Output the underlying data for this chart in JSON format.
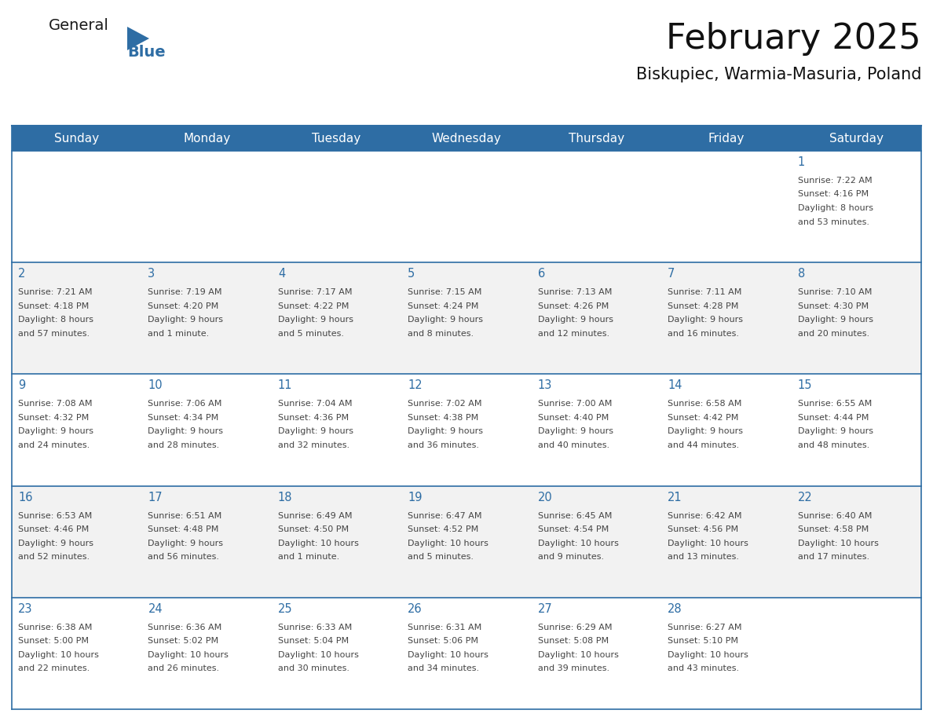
{
  "title": "February 2025",
  "subtitle": "Biskupiec, Warmia-Masuria, Poland",
  "days_of_week": [
    "Sunday",
    "Monday",
    "Tuesday",
    "Wednesday",
    "Thursday",
    "Friday",
    "Saturday"
  ],
  "header_bg": "#2E6DA4",
  "header_text": "#FFFFFF",
  "cell_bg_odd": "#F2F2F2",
  "cell_bg_even": "#FFFFFF",
  "border_color": "#2E6DA4",
  "day_number_color": "#2E6DA4",
  "text_color": "#444444",
  "title_color": "#111111",
  "logo_general_color": "#1A1A1A",
  "logo_blue_color": "#2E6DA4",
  "weeks": [
    [
      {
        "day": null,
        "sunrise": null,
        "sunset": null,
        "daylight": null
      },
      {
        "day": null,
        "sunrise": null,
        "sunset": null,
        "daylight": null
      },
      {
        "day": null,
        "sunrise": null,
        "sunset": null,
        "daylight": null
      },
      {
        "day": null,
        "sunrise": null,
        "sunset": null,
        "daylight": null
      },
      {
        "day": null,
        "sunrise": null,
        "sunset": null,
        "daylight": null
      },
      {
        "day": null,
        "sunrise": null,
        "sunset": null,
        "daylight": null
      },
      {
        "day": 1,
        "sunrise": "7:22 AM",
        "sunset": "4:16 PM",
        "daylight": "8 hours\nand 53 minutes."
      }
    ],
    [
      {
        "day": 2,
        "sunrise": "7:21 AM",
        "sunset": "4:18 PM",
        "daylight": "8 hours\nand 57 minutes."
      },
      {
        "day": 3,
        "sunrise": "7:19 AM",
        "sunset": "4:20 PM",
        "daylight": "9 hours\nand 1 minute."
      },
      {
        "day": 4,
        "sunrise": "7:17 AM",
        "sunset": "4:22 PM",
        "daylight": "9 hours\nand 5 minutes."
      },
      {
        "day": 5,
        "sunrise": "7:15 AM",
        "sunset": "4:24 PM",
        "daylight": "9 hours\nand 8 minutes."
      },
      {
        "day": 6,
        "sunrise": "7:13 AM",
        "sunset": "4:26 PM",
        "daylight": "9 hours\nand 12 minutes."
      },
      {
        "day": 7,
        "sunrise": "7:11 AM",
        "sunset": "4:28 PM",
        "daylight": "9 hours\nand 16 minutes."
      },
      {
        "day": 8,
        "sunrise": "7:10 AM",
        "sunset": "4:30 PM",
        "daylight": "9 hours\nand 20 minutes."
      }
    ],
    [
      {
        "day": 9,
        "sunrise": "7:08 AM",
        "sunset": "4:32 PM",
        "daylight": "9 hours\nand 24 minutes."
      },
      {
        "day": 10,
        "sunrise": "7:06 AM",
        "sunset": "4:34 PM",
        "daylight": "9 hours\nand 28 minutes."
      },
      {
        "day": 11,
        "sunrise": "7:04 AM",
        "sunset": "4:36 PM",
        "daylight": "9 hours\nand 32 minutes."
      },
      {
        "day": 12,
        "sunrise": "7:02 AM",
        "sunset": "4:38 PM",
        "daylight": "9 hours\nand 36 minutes."
      },
      {
        "day": 13,
        "sunrise": "7:00 AM",
        "sunset": "4:40 PM",
        "daylight": "9 hours\nand 40 minutes."
      },
      {
        "day": 14,
        "sunrise": "6:58 AM",
        "sunset": "4:42 PM",
        "daylight": "9 hours\nand 44 minutes."
      },
      {
        "day": 15,
        "sunrise": "6:55 AM",
        "sunset": "4:44 PM",
        "daylight": "9 hours\nand 48 minutes."
      }
    ],
    [
      {
        "day": 16,
        "sunrise": "6:53 AM",
        "sunset": "4:46 PM",
        "daylight": "9 hours\nand 52 minutes."
      },
      {
        "day": 17,
        "sunrise": "6:51 AM",
        "sunset": "4:48 PM",
        "daylight": "9 hours\nand 56 minutes."
      },
      {
        "day": 18,
        "sunrise": "6:49 AM",
        "sunset": "4:50 PM",
        "daylight": "10 hours\nand 1 minute."
      },
      {
        "day": 19,
        "sunrise": "6:47 AM",
        "sunset": "4:52 PM",
        "daylight": "10 hours\nand 5 minutes."
      },
      {
        "day": 20,
        "sunrise": "6:45 AM",
        "sunset": "4:54 PM",
        "daylight": "10 hours\nand 9 minutes."
      },
      {
        "day": 21,
        "sunrise": "6:42 AM",
        "sunset": "4:56 PM",
        "daylight": "10 hours\nand 13 minutes."
      },
      {
        "day": 22,
        "sunrise": "6:40 AM",
        "sunset": "4:58 PM",
        "daylight": "10 hours\nand 17 minutes."
      }
    ],
    [
      {
        "day": 23,
        "sunrise": "6:38 AM",
        "sunset": "5:00 PM",
        "daylight": "10 hours\nand 22 minutes."
      },
      {
        "day": 24,
        "sunrise": "6:36 AM",
        "sunset": "5:02 PM",
        "daylight": "10 hours\nand 26 minutes."
      },
      {
        "day": 25,
        "sunrise": "6:33 AM",
        "sunset": "5:04 PM",
        "daylight": "10 hours\nand 30 minutes."
      },
      {
        "day": 26,
        "sunrise": "6:31 AM",
        "sunset": "5:06 PM",
        "daylight": "10 hours\nand 34 minutes."
      },
      {
        "day": 27,
        "sunrise": "6:29 AM",
        "sunset": "5:08 PM",
        "daylight": "10 hours\nand 39 minutes."
      },
      {
        "day": 28,
        "sunrise": "6:27 AM",
        "sunset": "5:10 PM",
        "daylight": "10 hours\nand 43 minutes."
      },
      {
        "day": null,
        "sunrise": null,
        "sunset": null,
        "daylight": null
      }
    ]
  ]
}
